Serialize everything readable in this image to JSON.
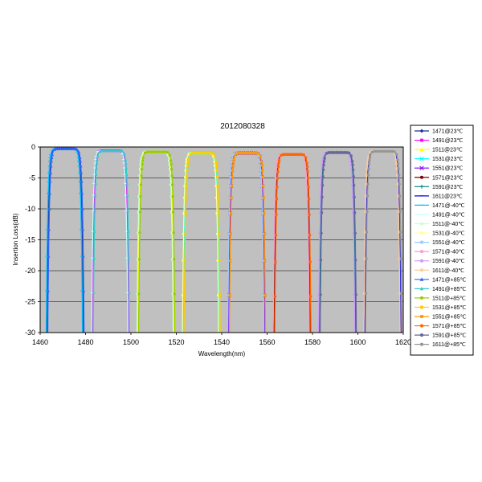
{
  "chart_data": {
    "type": "line",
    "title": "2012080328",
    "xlabel": "Wavelength(nm)",
    "ylabel": "Insertion Loss(dB)",
    "xlim": [
      1460,
      1620
    ],
    "ylim": [
      -30,
      0
    ],
    "xticks": [
      1460,
      1480,
      1500,
      1520,
      1540,
      1560,
      1580,
      1600,
      1620
    ],
    "yticks": [
      0,
      -5,
      -10,
      -15,
      -20,
      -25,
      -30
    ],
    "plot_background": "#c0c0c0",
    "grid": "horizontal",
    "legend_position": "right",
    "channels": [
      {
        "center": 1471,
        "half_width_3db": 6.6,
        "floor_db": -0.3
      },
      {
        "center": 1491,
        "half_width_3db": 6.6,
        "floor_db": -0.6
      },
      {
        "center": 1511,
        "half_width_3db": 6.6,
        "floor_db": -0.8
      },
      {
        "center": 1531,
        "half_width_3db": 6.6,
        "floor_db": -1.0
      },
      {
        "center": 1551,
        "half_width_3db": 6.6,
        "floor_db": -1.0
      },
      {
        "center": 1571,
        "half_width_3db": 6.6,
        "floor_db": -1.2
      },
      {
        "center": 1591,
        "half_width_3db": 6.6,
        "floor_db": -0.9
      },
      {
        "center": 1611,
        "half_width_3db": 6.6,
        "floor_db": -0.7
      }
    ],
    "series": [
      {
        "name": "1471@23℃",
        "channel": 0,
        "color": "#1f2f8f",
        "marker": "diamond"
      },
      {
        "name": "1491@23℃",
        "channel": 1,
        "color": "#ff00ff",
        "marker": "square"
      },
      {
        "name": "1511@23℃",
        "channel": 2,
        "color": "#ffff00",
        "marker": "triangle"
      },
      {
        "name": "1531@23℃",
        "channel": 3,
        "color": "#00ffff",
        "marker": "x"
      },
      {
        "name": "1551@23℃",
        "channel": 4,
        "color": "#8000ff",
        "marker": "x"
      },
      {
        "name": "1571@23℃",
        "channel": 5,
        "color": "#800000",
        "marker": "circle"
      },
      {
        "name": "1591@23℃",
        "channel": 6,
        "color": "#008080",
        "marker": "plus"
      },
      {
        "name": "1611@23℃",
        "channel": 7,
        "color": "#0000ff",
        "marker": "dash"
      },
      {
        "name": "1471@-40℃",
        "channel": 0,
        "color": "#00bfff",
        "marker": "dash"
      },
      {
        "name": "1491@-40℃",
        "channel": 1,
        "color": "#bfffff",
        "marker": "dash"
      },
      {
        "name": "1511@-40℃",
        "channel": 2,
        "color": "#ccffcc",
        "marker": "circle"
      },
      {
        "name": "1531@-40℃",
        "channel": 3,
        "color": "#ffff99",
        "marker": "circle"
      },
      {
        "name": "1551@-40℃",
        "channel": 4,
        "color": "#99ccff",
        "marker": "circle"
      },
      {
        "name": "1571@-40℃",
        "channel": 5,
        "color": "#ff99cc",
        "marker": "circle"
      },
      {
        "name": "1591@-40℃",
        "channel": 6,
        "color": "#cc99ff",
        "marker": "circle"
      },
      {
        "name": "1611@-40℃",
        "channel": 7,
        "color": "#ffcc99",
        "marker": "circle"
      },
      {
        "name": "1471@+85℃",
        "channel": 0,
        "color": "#3366ff",
        "marker": "triangle"
      },
      {
        "name": "1491@+85℃",
        "channel": 1,
        "color": "#33cccc",
        "marker": "triangle"
      },
      {
        "name": "1511@+85℃",
        "channel": 2,
        "color": "#99cc00",
        "marker": "circle"
      },
      {
        "name": "1531@+85℃",
        "channel": 3,
        "color": "#ffcc00",
        "marker": "square"
      },
      {
        "name": "1551@+85℃",
        "channel": 4,
        "color": "#ff9900",
        "marker": "square"
      },
      {
        "name": "1571@+85℃",
        "channel": 5,
        "color": "#ff6600",
        "marker": "circle"
      },
      {
        "name": "1591@+85℃",
        "channel": 6,
        "color": "#666699",
        "marker": "circle"
      },
      {
        "name": "1611@+85℃",
        "channel": 7,
        "color": "#969696",
        "marker": "circle"
      }
    ]
  }
}
